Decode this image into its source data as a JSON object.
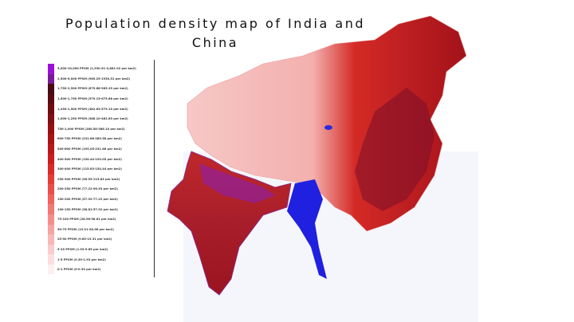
{
  "title": "Population density map of India and China",
  "legend": {
    "items": [
      {
        "label": "5,000-10,000 PPSM (1,930.51-3,861.02 per km2)",
        "color": "#9b10d8"
      },
      {
        "label": "2,500-5,000 PPSM (965.25-1930.51 per km2)",
        "color": "#7a1a9a"
      },
      {
        "label": "1,750-2,500 PPSM (675.68-965.25 per km2)",
        "color": "#4a0a14"
      },
      {
        "label": "1,500-1,750 PPSM (579.15-675.68 per km2)",
        "color": "#5c0a12"
      },
      {
        "label": "1,250-1,500 PPSM (482.63-579.15 per km2)",
        "color": "#6e0c12"
      },
      {
        "label": "1,000-1,250 PPSM (386.10-482.63 per km2)",
        "color": "#800e12"
      },
      {
        "label": "750-1,000 PPSM (289.58-386.10 per km2)",
        "color": "#961012"
      },
      {
        "label": "600-750 PPSM (231.66-289.58 per km2)",
        "color": "#a81414"
      },
      {
        "label": "500-600 PPSM (193.05-231.66 per km2)",
        "color": "#ba1818"
      },
      {
        "label": "400-500 PPSM (154.44-193.05 per km2)",
        "color": "#cc1e1e"
      },
      {
        "label": "300-400 PPSM (115.83-154.44 per km2)",
        "color": "#dc2a28"
      },
      {
        "label": "250-300 PPSM (96.53-115.83 per km2)",
        "color": "#e63c36"
      },
      {
        "label": "200-250 PPSM (77.22-96.53 per km2)",
        "color": "#ec4e48"
      },
      {
        "label": "150-200 PPSM (57.92-77.22 per km2)",
        "color": "#f0625c"
      },
      {
        "label": "100-150 PPSM (38.61-57.92 per km2)",
        "color": "#f27872"
      },
      {
        "label": "75-100 PPSM (28.96-38.61 per km2)",
        "color": "#f48e8a"
      },
      {
        "label": "50-75 PPSM (19.31-28.96 per km2)",
        "color": "#f6a4a0"
      },
      {
        "label": "25-50 PPSM (9.65-19.31 per km2)",
        "color": "#f8b8b6"
      },
      {
        "label": "5-25 PPSM (1.93-9.65 per km2)",
        "color": "#facccc"
      },
      {
        "label": "1-5 PPSM (0.39-1.93 per km2)",
        "color": "#fcdede"
      },
      {
        "label": "0-1 PPSM (0-0.39 per km2)",
        "color": "#fdf0f0"
      }
    ]
  }
}
